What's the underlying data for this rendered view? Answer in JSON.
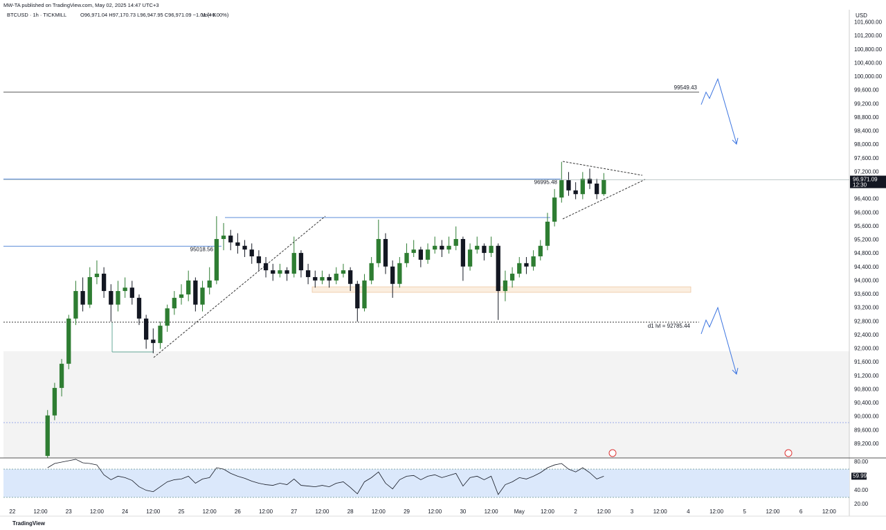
{
  "header": {
    "publisher": "MW-TA published on TradingView.com, May 02, 2025 14:47 UTC+3",
    "symbol": "BTCUSD · 1h · TICKMILL",
    "ohlc": "O96,971.04 H97,170.73 L96,947.95 C96,971.09 −1.01 (−0.00%)",
    "volume": "Vol4 K"
  },
  "footer": "TradingView",
  "chart_data": [
    {
      "type": "candlestick",
      "unit": "USD",
      "up_color": "#2e7d32",
      "down_color": "#131722",
      "x": [
        15,
        18,
        21,
        24,
        27,
        30,
        33,
        36,
        39,
        42,
        45,
        48,
        51,
        54,
        57,
        60,
        63,
        66,
        69,
        72,
        75,
        78,
        81,
        84,
        87,
        90,
        93,
        96,
        99,
        102,
        105,
        108,
        111,
        114,
        117,
        120,
        123,
        126,
        129,
        132,
        135,
        138,
        141,
        144,
        147,
        150,
        153,
        156,
        159,
        162,
        165,
        168,
        171,
        174,
        177,
        180,
        183,
        186,
        189,
        192,
        195,
        198,
        201,
        204,
        207,
        210,
        213,
        216,
        219,
        222,
        225,
        228,
        231,
        234,
        237,
        240,
        243,
        246,
        249,
        252
      ],
      "ohlc": [
        [
          88850,
          90200,
          88800,
          90040
        ],
        [
          90040,
          91000,
          89900,
          90850
        ],
        [
          90850,
          91700,
          90600,
          91560
        ],
        [
          91560,
          93000,
          91400,
          92890
        ],
        [
          92890,
          94000,
          92700,
          93700
        ],
        [
          93700,
          94100,
          93100,
          93300
        ],
        [
          93300,
          94400,
          93200,
          94110
        ],
        [
          94110,
          94600,
          93900,
          94210
        ],
        [
          94210,
          94400,
          93500,
          93700
        ],
        [
          93700,
          93900,
          92800,
          93300
        ],
        [
          93300,
          94000,
          93100,
          93700
        ],
        [
          93700,
          94100,
          93500,
          93800
        ],
        [
          93800,
          94000,
          93300,
          93500
        ],
        [
          93500,
          93600,
          92700,
          92890
        ],
        [
          92890,
          93000,
          92000,
          92270
        ],
        [
          92270,
          92600,
          91870,
          92170
        ],
        [
          92170,
          92800,
          92000,
          92680
        ],
        [
          92680,
          93300,
          92500,
          93190
        ],
        [
          93190,
          93700,
          93000,
          93500
        ],
        [
          93500,
          93900,
          93300,
          93600
        ],
        [
          93600,
          94300,
          93400,
          94010
        ],
        [
          94010,
          94100,
          93100,
          93300
        ],
        [
          93300,
          94000,
          93100,
          93800
        ],
        [
          93800,
          94400,
          93600,
          94010
        ],
        [
          94010,
          95900,
          93900,
          95230
        ],
        [
          95230,
          95700,
          94900,
          95330
        ],
        [
          95330,
          95500,
          94900,
          95130
        ],
        [
          95130,
          95400,
          94800,
          95030
        ],
        [
          95030,
          95200,
          94700,
          94920
        ],
        [
          94920,
          95100,
          94500,
          94720
        ],
        [
          94720,
          94900,
          94300,
          94520
        ],
        [
          94520,
          94700,
          94100,
          94310
        ],
        [
          94310,
          94500,
          94000,
          94210
        ],
        [
          94210,
          94500,
          94100,
          94310
        ],
        [
          94310,
          94400,
          94000,
          94210
        ],
        [
          94210,
          95300,
          94100,
          94820
        ],
        [
          94820,
          94900,
          94100,
          94310
        ],
        [
          94310,
          94500,
          93900,
          94110
        ],
        [
          94110,
          94300,
          93800,
          94010
        ],
        [
          94010,
          94300,
          93900,
          94110
        ],
        [
          94110,
          94200,
          93800,
          94010
        ],
        [
          94010,
          94400,
          93900,
          94210
        ],
        [
          94210,
          94500,
          94100,
          94310
        ],
        [
          94310,
          94400,
          93700,
          93910
        ],
        [
          93910,
          94000,
          92800,
          93190
        ],
        [
          93190,
          94200,
          93100,
          94010
        ],
        [
          94010,
          94700,
          93900,
          94520
        ],
        [
          94520,
          95800,
          94400,
          95230
        ],
        [
          95230,
          95400,
          94200,
          94420
        ],
        [
          94420,
          94600,
          93500,
          93910
        ],
        [
          93910,
          94700,
          93800,
          94520
        ],
        [
          94520,
          95100,
          94400,
          94820
        ],
        [
          94820,
          95200,
          94700,
          94920
        ],
        [
          94920,
          95000,
          94400,
          94620
        ],
        [
          94620,
          95100,
          94500,
          94920
        ],
        [
          94920,
          95300,
          94800,
          95030
        ],
        [
          95030,
          95200,
          94700,
          94920
        ],
        [
          94920,
          95300,
          94800,
          95030
        ],
        [
          95030,
          95600,
          94900,
          95230
        ],
        [
          95230,
          95300,
          94000,
          94420
        ],
        [
          94420,
          95100,
          94300,
          94920
        ],
        [
          94920,
          95300,
          94800,
          95030
        ],
        [
          95030,
          95100,
          94600,
          94820
        ],
        [
          94820,
          95300,
          94700,
          95030
        ],
        [
          95030,
          95100,
          92850,
          93700
        ],
        [
          93700,
          94300,
          93400,
          94010
        ],
        [
          94010,
          94400,
          93800,
          94210
        ],
        [
          94210,
          94700,
          94100,
          94520
        ],
        [
          94520,
          94700,
          94200,
          94420
        ],
        [
          94420,
          94900,
          94300,
          94720
        ],
        [
          94720,
          95200,
          94600,
          95030
        ],
        [
          95030,
          96000,
          94900,
          95740
        ],
        [
          95740,
          96700,
          95600,
          96450
        ],
        [
          96450,
          97500,
          96300,
          96960
        ],
        [
          96960,
          97200,
          96500,
          96660
        ],
        [
          96660,
          96900,
          96400,
          96550
        ],
        [
          96550,
          97200,
          96400,
          97000
        ],
        [
          97000,
          97300,
          96700,
          96860
        ],
        [
          96860,
          97000,
          96400,
          96550
        ],
        [
          96550,
          97170,
          96500,
          96971.09
        ]
      ],
      "xlim": [
        -3.8,
        356.6
      ],
      "xticks": [
        {
          "value": 0,
          "label": "22"
        },
        {
          "value": 12,
          "label": "12:00"
        },
        {
          "value": 24,
          "label": "23"
        },
        {
          "value": 36,
          "label": "12:00"
        },
        {
          "value": 48,
          "label": "24"
        },
        {
          "value": 60,
          "label": "12:00"
        },
        {
          "value": 72,
          "label": "25"
        },
        {
          "value": 84,
          "label": "12:00"
        },
        {
          "value": 96,
          "label": "26"
        },
        {
          "value": 108,
          "label": "12:00"
        },
        {
          "value": 120,
          "label": "27"
        },
        {
          "value": 132,
          "label": "12:00"
        },
        {
          "value": 144,
          "label": "28"
        },
        {
          "value": 156,
          "label": "12:00"
        },
        {
          "value": 168,
          "label": "29"
        },
        {
          "value": 180,
          "label": "12:00"
        },
        {
          "value": 192,
          "label": "30"
        },
        {
          "value": 204,
          "label": "12:00"
        },
        {
          "value": 216,
          "label": "May"
        },
        {
          "value": 228,
          "label": "12:00"
        },
        {
          "value": 240,
          "label": "2"
        },
        {
          "value": 252,
          "label": "12:00"
        },
        {
          "value": 264,
          "label": "3"
        },
        {
          "value": 276,
          "label": "12:00"
        },
        {
          "value": 288,
          "label": "4"
        },
        {
          "value": 300,
          "label": "12:00"
        },
        {
          "value": 312,
          "label": "5"
        },
        {
          "value": 324,
          "label": "12:00"
        },
        {
          "value": 336,
          "label": "6"
        },
        {
          "value": 348,
          "label": "12:00"
        }
      ],
      "ylim": [
        88790,
        101975
      ],
      "yticks": [
        {
          "value": 89200,
          "label": "89,200.00"
        },
        {
          "value": 89600,
          "label": "89,600.00"
        },
        {
          "value": 90000,
          "label": "90,000.00"
        },
        {
          "value": 90400,
          "label": "90,400.00"
        },
        {
          "value": 90800,
          "label": "90,800.00"
        },
        {
          "value": 91200,
          "label": "91,200.00"
        },
        {
          "value": 91600,
          "label": "91,600.00"
        },
        {
          "value": 92000,
          "label": "92,000.00"
        },
        {
          "value": 92400,
          "label": "92,400.00"
        },
        {
          "value": 92800,
          "label": "92,800.00"
        },
        {
          "value": 93200,
          "label": "93,200.00"
        },
        {
          "value": 93600,
          "label": "93,600.00"
        },
        {
          "value": 94000,
          "label": "94,000.00"
        },
        {
          "value": 94400,
          "label": "94,400.00"
        },
        {
          "value": 94800,
          "label": "94,800.00"
        },
        {
          "value": 95200,
          "label": "95,200.00"
        },
        {
          "value": 95600,
          "label": "95,600.00"
        },
        {
          "value": 96000,
          "label": "96,000.00"
        },
        {
          "value": 96400,
          "label": "96,400.00"
        },
        {
          "value": 97200,
          "label": "97,200.00"
        },
        {
          "value": 97600,
          "label": "97,600.00"
        },
        {
          "value": 98000,
          "label": "98,000.00"
        },
        {
          "value": 98400,
          "label": "98,400.00"
        },
        {
          "value": 98800,
          "label": "98,800.00"
        },
        {
          "value": 99200,
          "label": "99,200.00"
        },
        {
          "value": 99600,
          "label": "99,600.00"
        },
        {
          "value": 100000,
          "label": "100,000.00"
        },
        {
          "value": 100400,
          "label": "100,400.00"
        },
        {
          "value": 100800,
          "label": "100,800.00"
        },
        {
          "value": 101200,
          "label": "101,200.00"
        },
        {
          "value": 101600,
          "label": "101,600.00"
        }
      ],
      "last_price": {
        "value": 96971.09,
        "label": "96,971.09"
      },
      "countdown": "12:30",
      "levels": [
        {
          "value": 99549.43,
          "color": "#555555"
        },
        {
          "value": 96995.48,
          "color": "#5b8bd8"
        },
        {
          "value": 95018.56,
          "color": "#5b8bd8"
        },
        {
          "value": 92785.44,
          "label": "d1 lvl = 92785.44",
          "color": "#333333"
        }
      ]
    },
    {
      "type": "line",
      "color": "#131722",
      "band_color": "#dbe8fb",
      "x": [
        15,
        18,
        21,
        24,
        27,
        30,
        33,
        36,
        39,
        42,
        45,
        48,
        51,
        54,
        57,
        60,
        63,
        66,
        69,
        72,
        75,
        78,
        81,
        84,
        87,
        90,
        93,
        96,
        99,
        102,
        105,
        108,
        111,
        114,
        117,
        120,
        123,
        126,
        129,
        132,
        135,
        138,
        141,
        144,
        147,
        150,
        153,
        156,
        159,
        162,
        165,
        168,
        171,
        174,
        177,
        180,
        183,
        186,
        189,
        192,
        195,
        198,
        201,
        204,
        207,
        210,
        213,
        216,
        219,
        222,
        225,
        228,
        231,
        234,
        237,
        240,
        243,
        246,
        249,
        252
      ],
      "values": [
        72,
        78,
        80,
        82,
        84,
        79,
        78,
        76,
        62,
        55,
        60,
        58,
        54,
        45,
        40,
        38,
        45,
        52,
        55,
        56,
        60,
        50,
        56,
        58,
        72,
        70,
        64,
        60,
        57,
        53,
        50,
        48,
        47,
        50,
        48,
        56,
        47,
        46,
        45,
        47,
        45,
        50,
        52,
        44,
        35,
        52,
        58,
        66,
        50,
        42,
        55,
        60,
        61,
        55,
        60,
        62,
        58,
        61,
        64,
        46,
        58,
        60,
        55,
        60,
        34,
        48,
        52,
        58,
        56,
        60,
        65,
        72,
        76,
        78,
        70,
        66,
        72,
        65,
        56,
        59.99
      ],
      "ylim": [
        3.3,
        85.9
      ],
      "yticks": [
        {
          "value": 20,
          "label": "20.00"
        },
        {
          "value": 40,
          "label": "40.00"
        },
        {
          "value": 80,
          "label": "80.00"
        }
      ],
      "band": [
        30,
        70
      ],
      "last_value": {
        "value": 59.99,
        "label": "59.99"
      }
    }
  ]
}
